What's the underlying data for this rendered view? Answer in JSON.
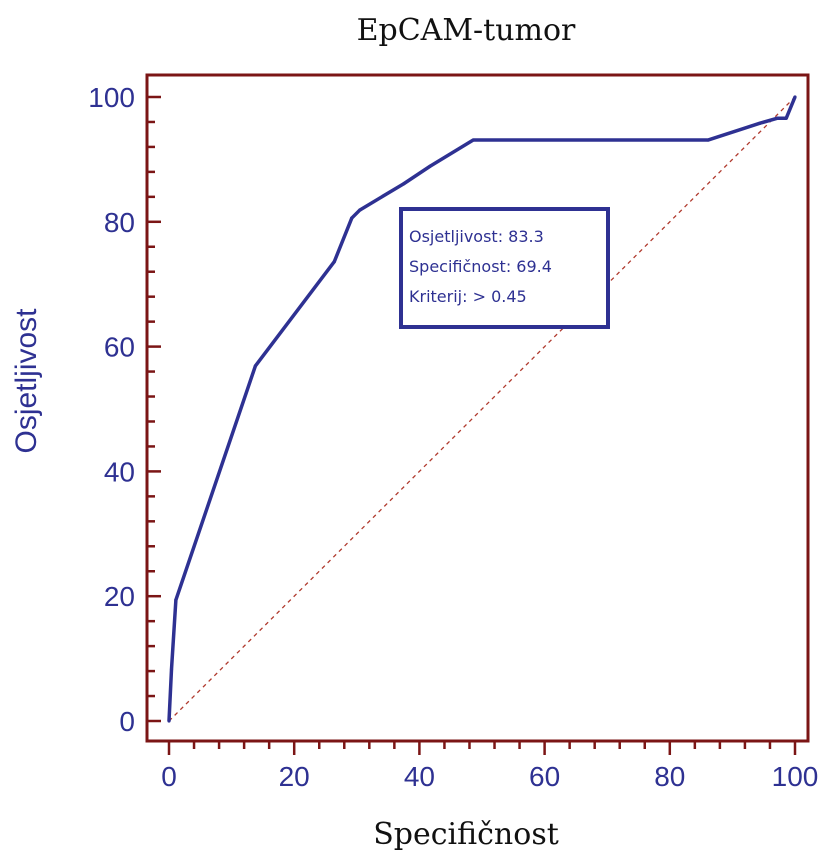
{
  "chart_data": {
    "type": "line",
    "title": "EpCAM-tumor",
    "xlabel": "Specifičnost",
    "ylabel": "Osjetljivost",
    "xlim": [
      0,
      100
    ],
    "ylim": [
      0,
      100
    ],
    "xticks": [
      0,
      20,
      40,
      60,
      80,
      100
    ],
    "yticks": [
      0,
      20,
      40,
      60,
      80,
      100
    ],
    "grid": false,
    "legend": "none",
    "series": [
      {
        "x": [
          0,
          0.4,
          1.1,
          13.8,
          26.4,
          29.2,
          30.5,
          37.5,
          41.7,
          48.6,
          86.1,
          94.4,
          97.2,
          98.6,
          100
        ],
        "y": [
          0,
          8.3,
          19.4,
          56.9,
          73.6,
          80.6,
          81.9,
          86.1,
          88.9,
          93.1,
          93.1,
          95.8,
          96.6,
          96.6,
          100
        ],
        "color": "#2E3192"
      }
    ],
    "reference_line": {
      "x": [
        0,
        100
      ],
      "y": [
        0,
        100
      ],
      "style": "dashed",
      "color": "#B03A2E"
    },
    "annotation": {
      "lines": [
        "Osjetljivost: 83.3",
        "Specifičnost: 69.4",
        "Kriterij: > 0.45"
      ],
      "color": "#2E3192"
    },
    "colors": {
      "frame": "#7B1515",
      "curve": "#2E3192",
      "axis_text": "#2E3192"
    }
  }
}
